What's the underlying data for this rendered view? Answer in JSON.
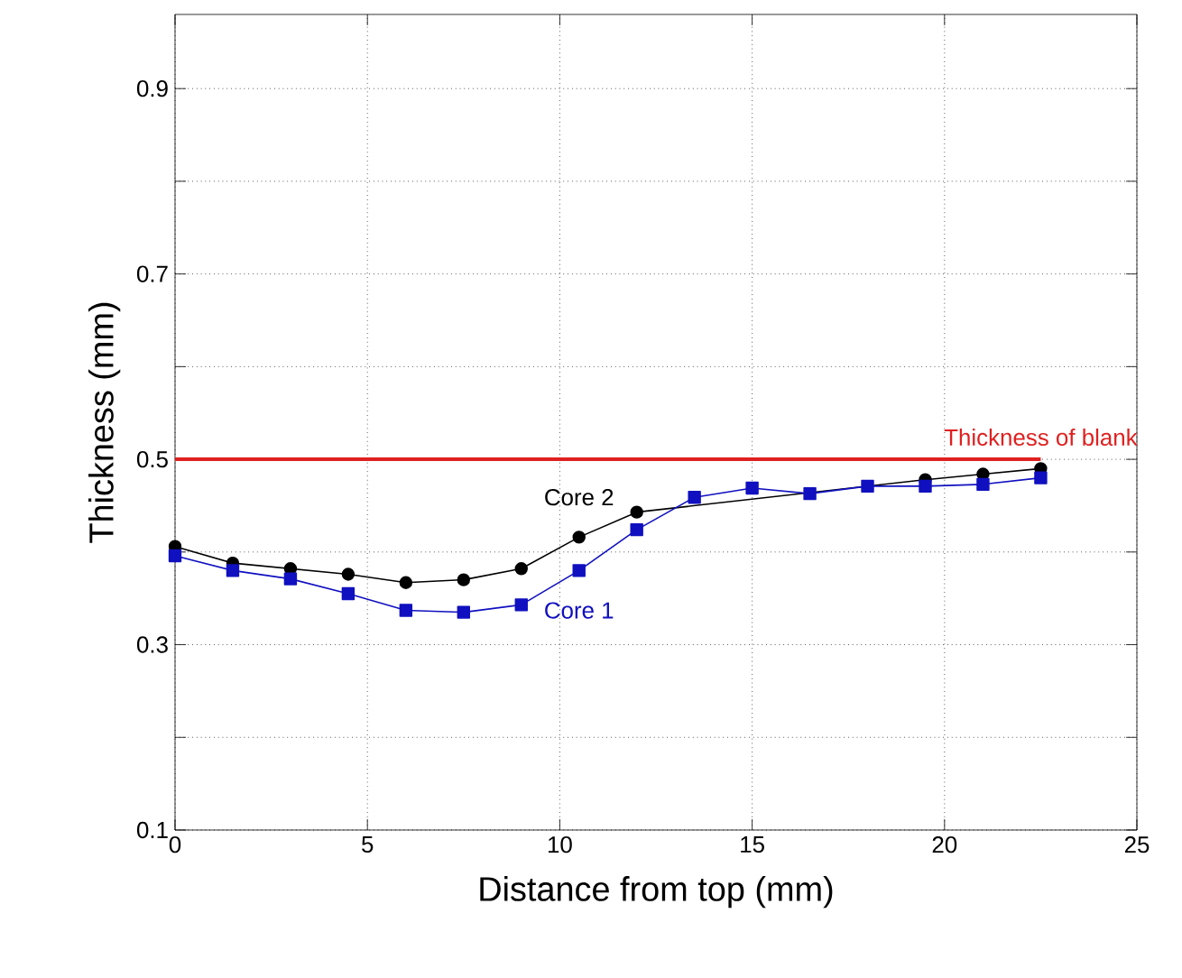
{
  "chart_data": {
    "type": "line",
    "xlabel": "Distance from top (mm)",
    "ylabel": "Thickness (mm)",
    "xlim": [
      0,
      25
    ],
    "xticks": [
      0,
      5,
      10,
      15,
      20,
      25
    ],
    "ylim": [
      0.1,
      0.98
    ],
    "yticks": [
      0.1,
      {
        "value": 0.2,
        "label": null
      },
      0.3,
      {
        "value": 0.4,
        "label": null
      },
      0.5,
      {
        "value": 0.6,
        "label": null
      },
      0.7,
      {
        "value": 0.8,
        "label": null
      },
      0.9
    ],
    "grid": true,
    "legend": false,
    "line_style": "solid",
    "series": [
      {
        "name": "Thickness of blank",
        "color": "#e02020",
        "marker": "none",
        "x": [
          0,
          22.5
        ],
        "values": [
          0.5,
          0.5
        ]
      },
      {
        "name": "Core 2",
        "color": "#000000",
        "marker": "circle",
        "x": [
          0,
          1.5,
          3,
          4.5,
          6,
          7.5,
          9,
          10.5,
          12,
          13.5,
          15,
          16.5,
          18,
          19.5,
          21,
          22.5
        ],
        "values": [
          0.406,
          0.388,
          0.382,
          0.376,
          0.367,
          0.37,
          0.382,
          0.416,
          0.443,
          null,
          null,
          null,
          null,
          0.478,
          0.484,
          0.49
        ]
      },
      {
        "name": "Core 1",
        "color": "#1010c0",
        "marker": "square",
        "x": [
          0,
          1.5,
          3,
          4.5,
          6,
          7.5,
          9,
          10.5,
          12,
          13.5,
          15,
          16.5,
          18,
          19.5,
          21,
          22.5
        ],
        "values": [
          0.396,
          0.38,
          0.371,
          0.355,
          0.337,
          0.335,
          0.343,
          0.38,
          0.424,
          0.459,
          0.469,
          0.463,
          0.471,
          0.471,
          0.473,
          0.48
        ]
      }
    ]
  }
}
